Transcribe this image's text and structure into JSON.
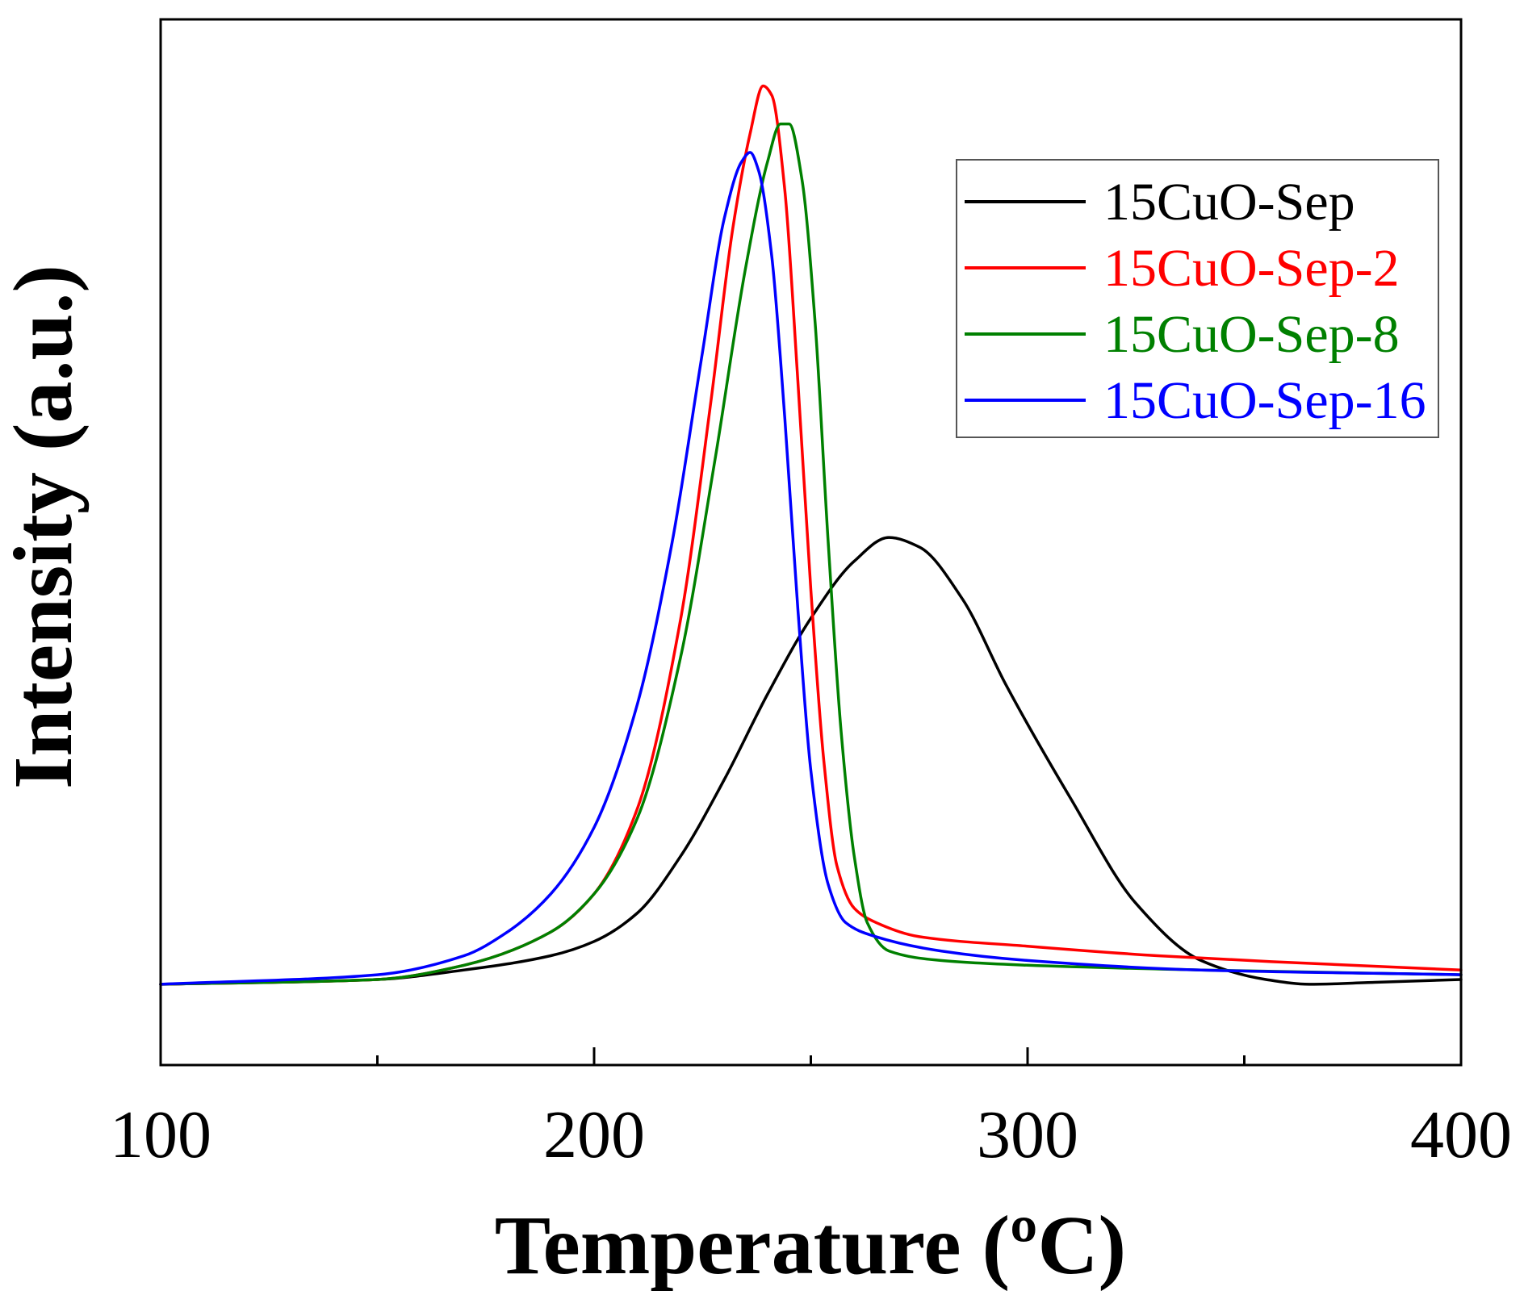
{
  "chart_data": {
    "type": "line",
    "title": "",
    "xlabel": "Temperature (ºC)",
    "ylabel": "Intensity (a.u.)",
    "xlim": [
      100,
      400
    ],
    "ylim": [
      0,
      1.1
    ],
    "x_ticks": [
      100,
      200,
      300,
      400
    ],
    "x_tick_labels": [
      "100",
      "200",
      "300",
      "400"
    ],
    "x_minor_ticks": [
      150,
      250,
      350
    ],
    "y_ticks_shown": false,
    "grid": false,
    "legend_position": "top-right",
    "series": [
      {
        "name": "15CuO-Sep",
        "color": "#000000",
        "x": [
          100,
          150,
          170,
          190,
          200,
          210,
          220,
          230,
          240,
          250,
          260,
          268,
          275,
          285,
          295,
          310,
          325,
          340,
          355,
          365,
          380,
          400
        ],
        "y": [
          0.085,
          0.09,
          0.1,
          0.115,
          0.13,
          0.16,
          0.22,
          0.3,
          0.39,
          0.47,
          0.53,
          0.555,
          0.545,
          0.49,
          0.4,
          0.28,
          0.17,
          0.11,
          0.09,
          0.085,
          0.087,
          0.09
        ]
      },
      {
        "name": "15CuO-Sep-2",
        "color": "#ff0000",
        "x": [
          100,
          150,
          170,
          190,
          200,
          210,
          220,
          227,
          232,
          236,
          239,
          241,
          244,
          247,
          250,
          253,
          256,
          260,
          265,
          275,
          300,
          330,
          360,
          400
        ],
        "y": [
          0.085,
          0.09,
          0.105,
          0.14,
          0.18,
          0.27,
          0.47,
          0.7,
          0.88,
          0.98,
          1.03,
          1.02,
          0.92,
          0.72,
          0.5,
          0.32,
          0.21,
          0.165,
          0.15,
          0.135,
          0.125,
          0.115,
          0.108,
          0.1
        ]
      },
      {
        "name": "15CuO-Sep-8",
        "color": "#008000",
        "x": [
          100,
          150,
          170,
          190,
          200,
          210,
          220,
          228,
          235,
          240,
          243,
          245,
          248,
          251,
          254,
          257,
          260,
          263,
          268,
          280,
          300,
          340,
          400
        ],
        "y": [
          0.085,
          0.09,
          0.105,
          0.14,
          0.18,
          0.26,
          0.43,
          0.64,
          0.84,
          0.95,
          0.99,
          0.99,
          0.93,
          0.78,
          0.55,
          0.35,
          0.22,
          0.15,
          0.12,
          0.11,
          0.105,
          0.1,
          0.095
        ]
      },
      {
        "name": "15CuO-Sep-16",
        "color": "#0000ff",
        "x": [
          100,
          150,
          170,
          180,
          190,
          200,
          210,
          218,
          225,
          230,
          234,
          236,
          238,
          241,
          244,
          247,
          250,
          254,
          258,
          265,
          280,
          300,
          340,
          400
        ],
        "y": [
          0.085,
          0.095,
          0.115,
          0.14,
          0.18,
          0.25,
          0.38,
          0.55,
          0.75,
          0.89,
          0.95,
          0.96,
          0.94,
          0.85,
          0.68,
          0.48,
          0.31,
          0.19,
          0.15,
          0.135,
          0.12,
          0.11,
          0.1,
          0.095
        ]
      }
    ]
  }
}
